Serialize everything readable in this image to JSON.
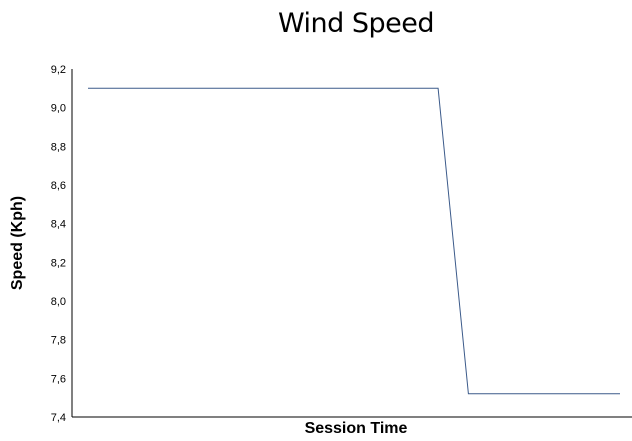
{
  "chart_data": {
    "type": "line",
    "title": "Wind Speed",
    "xlabel": "Session Time",
    "ylabel": "Speed (Kph)",
    "ylim": [
      7.4,
      9.2
    ],
    "yticks": [
      "7,4",
      "7,6",
      "7,8",
      "8,0",
      "8,2",
      "8,4",
      "8,6",
      "8,8",
      "9,0",
      "9,2"
    ],
    "grid": false,
    "series": [
      {
        "values": [
          9.1,
          9.1,
          7.52,
          7.52
        ]
      }
    ],
    "x": [
      0,
      0.658,
      0.715,
      1.0
    ],
    "line_color": "#3b5a8a"
  }
}
